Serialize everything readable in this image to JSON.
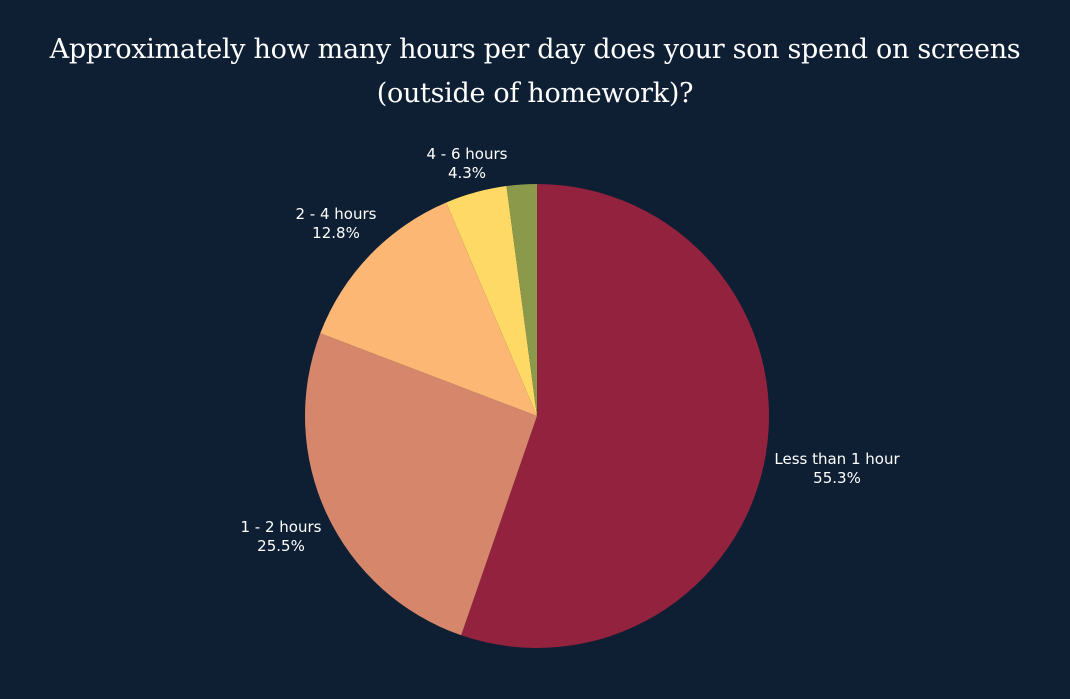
{
  "chart_data": {
    "type": "pie",
    "title": "Approximately how many hours per day does your son spend on screens (outside of homework)?",
    "slices": [
      {
        "label": "Less than 1 hour",
        "value": 55.3,
        "display": "55.3%",
        "color": "#93223e"
      },
      {
        "label": "1 - 2 hours",
        "value": 25.5,
        "display": "25.5%",
        "color": "#d6866a"
      },
      {
        "label": "2 - 4 hours",
        "value": 12.8,
        "display": "12.8%",
        "color": "#fbb773"
      },
      {
        "label": "4 - 6 hours",
        "value": 4.3,
        "display": "4.3%",
        "color": "#ffd966"
      },
      {
        "label": "",
        "value": 2.1,
        "display": "",
        "color": "#8b994a"
      }
    ],
    "start": "12 o'clock",
    "direction": "clockwise"
  }
}
